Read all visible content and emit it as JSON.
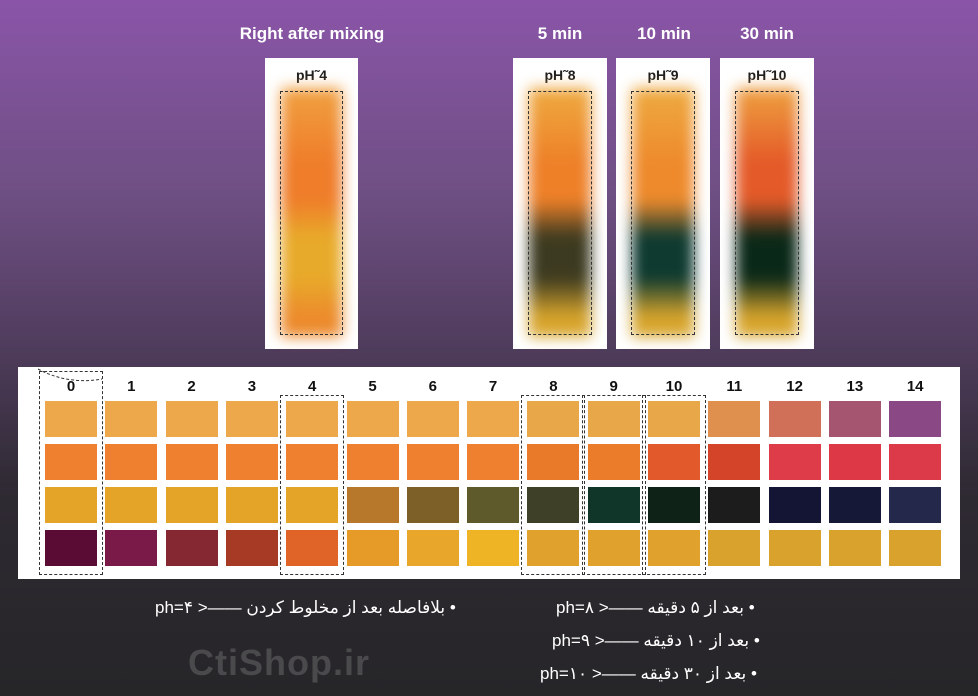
{
  "headers": {
    "right_after": "Right after mixing",
    "t5": "5 min",
    "t10": "10 min",
    "t30": "30 min"
  },
  "strips": [
    {
      "label": "pH˜4",
      "colors": [
        "#f0a040",
        "#ef7d2a",
        "#e8aa2a",
        "#ec8a2c"
      ]
    },
    {
      "label": "pH˜8",
      "colors": [
        "#eeaa40",
        "#ee8028",
        "#3c3a20",
        "#d8a52c"
      ]
    },
    {
      "label": "pH˜9",
      "colors": [
        "#eeaa40",
        "#ee8a2c",
        "#0e3a30",
        "#d8a52c"
      ]
    },
    {
      "label": "pH˜10",
      "colors": [
        "#eea040",
        "#e45a28",
        "#0a2818",
        "#d8a52c"
      ]
    }
  ],
  "chart": {
    "numbers": [
      "0",
      "1",
      "2",
      "3",
      "4",
      "5",
      "6",
      "7",
      "8",
      "9",
      "10",
      "11",
      "12",
      "13",
      "14"
    ],
    "rows": [
      [
        "#eca84a",
        "#eca84a",
        "#eca84a",
        "#eca84a",
        "#eca84a",
        "#eca84a",
        "#eca84a",
        "#eca84a",
        "#e8a84a",
        "#e8a84a",
        "#e8a84a",
        "#e0904e",
        "#d07058",
        "#a65570",
        "#8a4884"
      ],
      [
        "#ee8030",
        "#ee8030",
        "#ee8030",
        "#ee8030",
        "#ee8030",
        "#ee8030",
        "#ee8030",
        "#ee8030",
        "#e87a2a",
        "#ea7c2a",
        "#e25a2c",
        "#d44428",
        "#de3c48",
        "#dc3846",
        "#dc3a48"
      ],
      [
        "#e4a428",
        "#e4a428",
        "#e4a428",
        "#e4a428",
        "#e4a428",
        "#b8782c",
        "#7c6028",
        "#5e5a2c",
        "#3e4028",
        "#10362a",
        "#0e2218",
        "#1c1c1c",
        "#141434",
        "#161838",
        "#24284a"
      ],
      [
        "#5a0c34",
        "#7a1a48",
        "#862832",
        "#a63a24",
        "#e06428",
        "#e69a28",
        "#e8a62a",
        "#eeb426",
        "#e0a22c",
        "#e0a22c",
        "#e0a22c",
        "#d8a22c",
        "#d8a22c",
        "#d8a22c",
        "#d8a22c"
      ]
    ]
  },
  "notes": {
    "left": "• بلافاصله بعد از مخلوط کردن ——< ph=۴",
    "r1": "• بعد از ۵ دقیقه ——< ph=۸",
    "r2": "• بعد از ۱۰ دقیقه ——< ph=۹",
    "r3": "• بعد از ۳۰ دقیقه ——< ph=۱۰"
  },
  "watermark": "CtiShop.ir"
}
